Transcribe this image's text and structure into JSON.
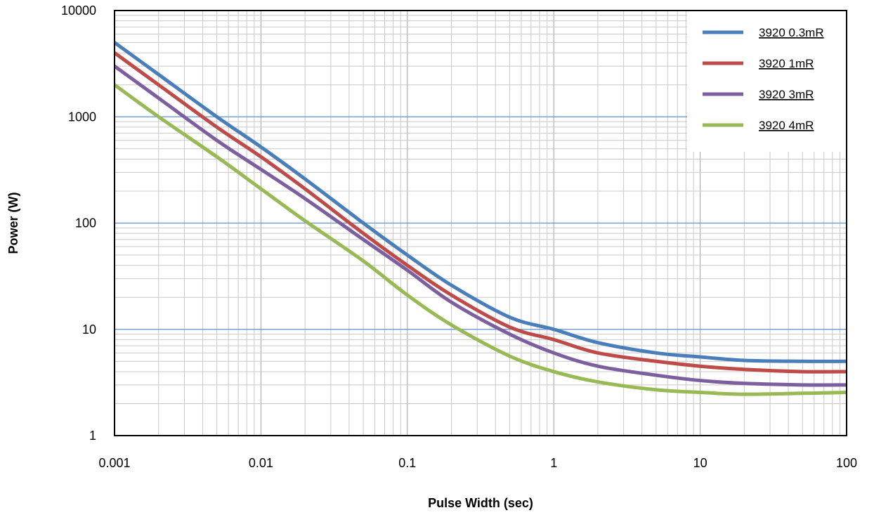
{
  "chart_data": {
    "type": "line",
    "xlabel": "Pulse Width (sec)",
    "ylabel": "Power (W)",
    "xscale": "log",
    "yscale": "log",
    "xlim": [
      0.001,
      100
    ],
    "ylim": [
      1,
      10000
    ],
    "x_ticks": [
      "0.001",
      "0.01",
      "0.1",
      "1",
      "10",
      "100"
    ],
    "y_ticks": [
      "1",
      "10",
      "100",
      "1000",
      "10000"
    ],
    "grid": true,
    "legend_position": "top-right",
    "series": [
      {
        "name": "3920 0.3mR",
        "color": "#4a7ebb",
        "points": [
          [
            0.001,
            5000
          ],
          [
            0.002,
            2500
          ],
          [
            0.005,
            1000
          ],
          [
            0.01,
            520
          ],
          [
            0.02,
            260
          ],
          [
            0.05,
            100
          ],
          [
            0.1,
            50
          ],
          [
            0.2,
            26
          ],
          [
            0.5,
            13
          ],
          [
            1,
            10
          ],
          [
            2,
            7.5
          ],
          [
            5,
            6
          ],
          [
            10,
            5.5
          ],
          [
            20,
            5.1
          ],
          [
            50,
            5
          ],
          [
            100,
            5
          ]
        ]
      },
      {
        "name": "3920  1mR",
        "color": "#be4b48",
        "points": [
          [
            0.001,
            4000
          ],
          [
            0.002,
            2000
          ],
          [
            0.005,
            800
          ],
          [
            0.01,
            420
          ],
          [
            0.02,
            210
          ],
          [
            0.05,
            80
          ],
          [
            0.1,
            40
          ],
          [
            0.2,
            21
          ],
          [
            0.5,
            10.5
          ],
          [
            1,
            8
          ],
          [
            2,
            6
          ],
          [
            5,
            5
          ],
          [
            10,
            4.5
          ],
          [
            20,
            4.2
          ],
          [
            50,
            4
          ],
          [
            100,
            4
          ]
        ]
      },
      {
        "name": "3920  3mR",
        "color": "#7d5fa0",
        "points": [
          [
            0.001,
            3000
          ],
          [
            0.002,
            1500
          ],
          [
            0.005,
            600
          ],
          [
            0.01,
            320
          ],
          [
            0.02,
            170
          ],
          [
            0.05,
            70
          ],
          [
            0.1,
            36
          ],
          [
            0.2,
            18
          ],
          [
            0.5,
            9
          ],
          [
            1,
            6
          ],
          [
            2,
            4.5
          ],
          [
            5,
            3.7
          ],
          [
            10,
            3.3
          ],
          [
            20,
            3.1
          ],
          [
            50,
            3
          ],
          [
            100,
            3
          ]
        ]
      },
      {
        "name": "3920  4mR",
        "color": "#98b954",
        "points": [
          [
            0.001,
            2000
          ],
          [
            0.002,
            1000
          ],
          [
            0.005,
            420
          ],
          [
            0.01,
            210
          ],
          [
            0.02,
            105
          ],
          [
            0.05,
            44
          ],
          [
            0.1,
            21
          ],
          [
            0.2,
            11
          ],
          [
            0.5,
            5.6
          ],
          [
            1,
            4
          ],
          [
            2,
            3.2
          ],
          [
            5,
            2.7
          ],
          [
            10,
            2.55
          ],
          [
            20,
            2.45
          ],
          [
            50,
            2.5
          ],
          [
            100,
            2.55
          ]
        ]
      }
    ]
  }
}
